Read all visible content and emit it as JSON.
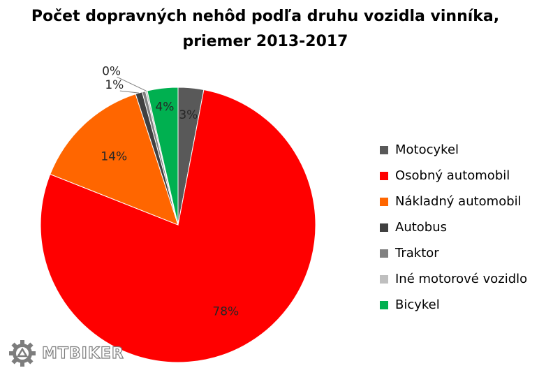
{
  "chart_data": {
    "type": "pie",
    "title_line1": "Počet dopravných nehôd podľa druhu vozidla vinníka,",
    "title_line2": "priemer 2013-2017",
    "legend_position": "right",
    "slices": [
      {
        "name": "Motocykel",
        "value": 3,
        "label": "3%",
        "color": "#595959"
      },
      {
        "name": "Osobný automobil",
        "value": 78,
        "label": "78%",
        "color": "#ff0000"
      },
      {
        "name": "Nákladný automobil",
        "value": 14,
        "label": "14%",
        "color": "#ff6600"
      },
      {
        "name": "Autobus",
        "value": 0.8,
        "label": "1%",
        "color": "#404040"
      },
      {
        "name": "Traktor",
        "value": 0.4,
        "label": "",
        "color": "#808080"
      },
      {
        "name": "Iné motorové vozidlo",
        "value": 0.2,
        "label": "0%",
        "color": "#bfbfbf"
      },
      {
        "name": "Bicykel",
        "value": 3.6,
        "label": "4%",
        "color": "#00b050"
      }
    ]
  },
  "watermark": {
    "text": "MTBIKER",
    "icon": "gear-icon"
  }
}
